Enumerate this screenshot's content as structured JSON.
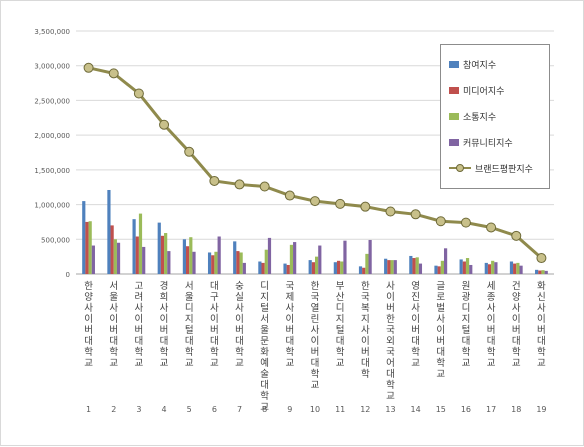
{
  "chart_data": {
    "type": "bar",
    "categories": [
      "1",
      "2",
      "3",
      "4",
      "5",
      "6",
      "7",
      "8",
      "9",
      "10",
      "11",
      "12",
      "13",
      "14",
      "15",
      "16",
      "17",
      "18",
      "19"
    ],
    "category_names": [
      "한양사이버대학교",
      "서울사이버대학교",
      "고려사이버대학교",
      "경희사이버대학교",
      "서울디지털대학교",
      "대구사이버대학교",
      "숭실사이버대학교",
      "디지털서울문화예술대학교",
      "국제사이버대학교",
      "한국열린사이버대학교",
      "부산디지털대학교",
      "한국복지사이버대학",
      "사이버한국외국어대학교",
      "영진사이버대학교",
      "글로벌사이버대학교",
      "원광디지털대학교",
      "세종사이버대학교",
      "건양사이버대학교",
      "화신사이버대학교"
    ],
    "series": [
      {
        "name": "참여지수",
        "color": "#4f81bd",
        "values": [
          1050000,
          1210000,
          790000,
          740000,
          500000,
          310000,
          470000,
          180000,
          150000,
          200000,
          170000,
          110000,
          220000,
          260000,
          120000,
          210000,
          160000,
          180000,
          60000
        ]
      },
      {
        "name": "미디어지수",
        "color": "#c0504d",
        "values": [
          750000,
          700000,
          540000,
          550000,
          400000,
          270000,
          330000,
          160000,
          130000,
          170000,
          190000,
          90000,
          200000,
          230000,
          110000,
          180000,
          140000,
          150000,
          50000
        ]
      },
      {
        "name": "소통지수",
        "color": "#9bbb59",
        "values": [
          760000,
          500000,
          870000,
          590000,
          530000,
          320000,
          310000,
          350000,
          420000,
          250000,
          180000,
          290000,
          200000,
          240000,
          190000,
          230000,
          190000,
          160000,
          55000
        ]
      },
      {
        "name": "커뮤니티지수",
        "color": "#8064a2",
        "values": [
          410000,
          450000,
          390000,
          330000,
          320000,
          540000,
          160000,
          520000,
          460000,
          410000,
          480000,
          490000,
          200000,
          150000,
          370000,
          130000,
          170000,
          120000,
          45000
        ]
      },
      {
        "name": "브랜드평판지수",
        "color": "#8f8a4c",
        "chart": "line",
        "values": [
          2970000,
          2890000,
          2600000,
          2150000,
          1760000,
          1340000,
          1290000,
          1260000,
          1130000,
          1050000,
          1010000,
          970000,
          900000,
          860000,
          760000,
          740000,
          670000,
          550000,
          230000
        ]
      }
    ],
    "ylim": [
      0,
      3500000
    ],
    "yticks": [
      "0",
      "500,000",
      "1,000,000",
      "1,500,000",
      "2,000,000",
      "2,500,000",
      "3,000,000",
      "3,500,000"
    ],
    "grid": true,
    "legend": "top-right"
  }
}
